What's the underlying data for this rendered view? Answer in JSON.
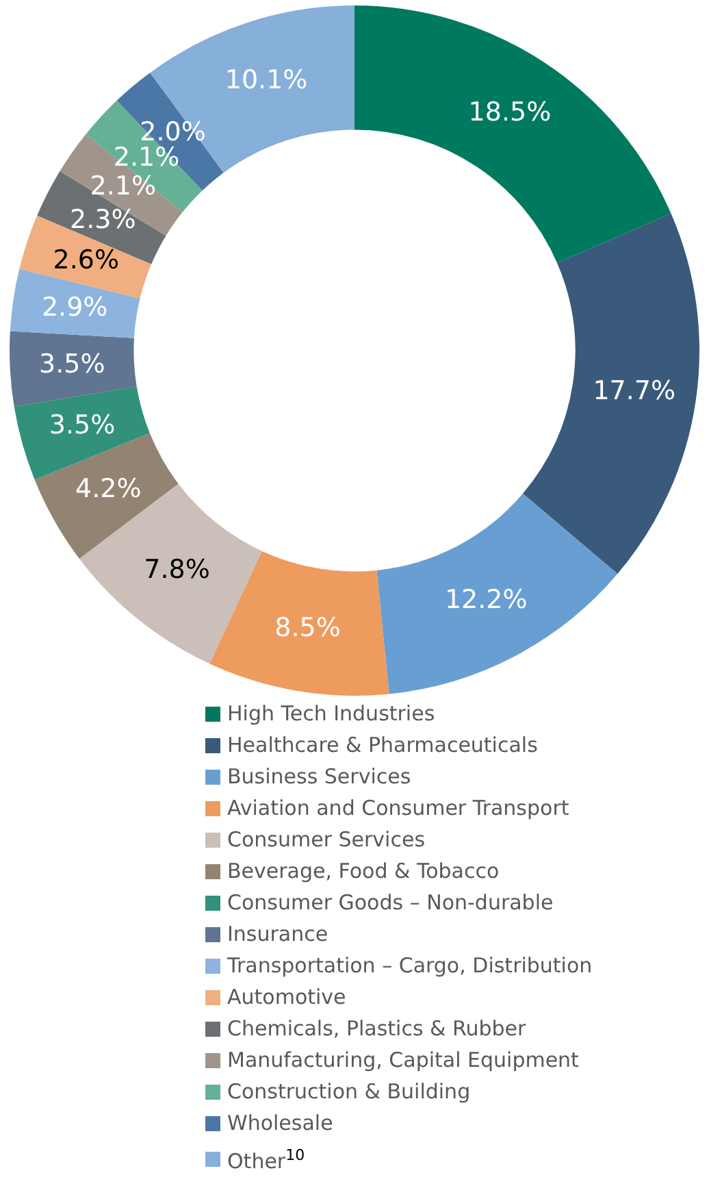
{
  "chart_data": {
    "type": "donut",
    "categories": [
      "High Tech Industries",
      "Healthcare & Pharmaceuticals",
      "Business Services",
      "Aviation and Consumer Transport",
      "Consumer Services",
      "Beverage, Food & Tobacco",
      "Consumer Goods – Non-durable",
      "Insurance",
      "Transportation – Cargo, Distribution",
      "Automotive",
      "Chemicals, Plastics & Rubber",
      "Manufacturing, Capital Equipment",
      "Construction & Building",
      "Wholesale",
      "Other$^{10}$"
    ],
    "values": [
      18.5,
      17.7,
      12.2,
      8.5,
      7.8,
      4.2,
      3.5,
      3.5,
      2.9,
      2.6,
      2.3,
      2.1,
      2.1,
      2.0,
      10.1
    ],
    "value_labels": [
      "18.5%",
      "17.7%",
      "12.2%",
      "8.5%",
      "7.8%",
      "4.2%",
      "3.5%",
      "3.5%",
      "2.9%",
      "2.6%",
      "2.3%",
      "2.1%",
      "2.1%",
      "2.0%",
      "10.1%"
    ],
    "colors": [
      "#007a5e",
      "#3a5a7c",
      "#699ed2",
      "#ee9b5e",
      "#cac0b9",
      "#938373",
      "#31917a",
      "#5f7591",
      "#8db4de",
      "#f1ae80",
      "#6b7073",
      "#a0958c",
      "#65b195",
      "#4a77a6",
      "#86afda"
    ],
    "legend": "bottom"
  }
}
